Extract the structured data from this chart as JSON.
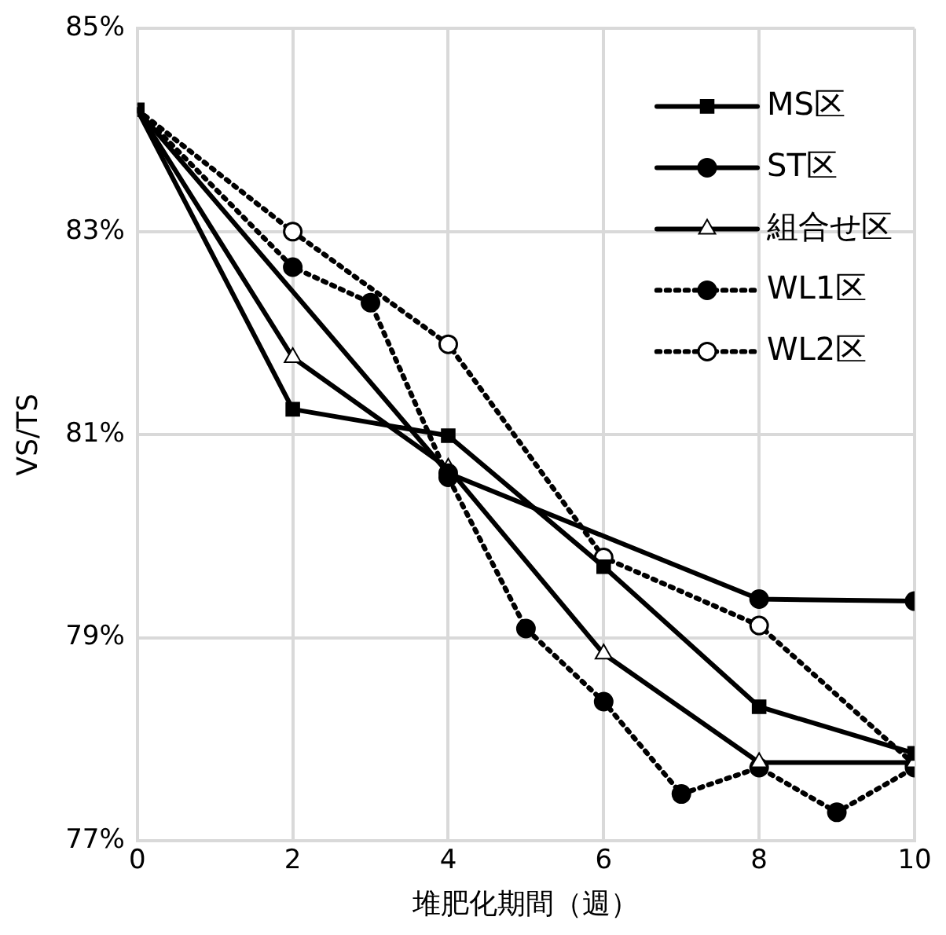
{
  "chart_data": {
    "type": "line",
    "xlabel": "堆肥化期間（週）",
    "ylabel": "VS/TS",
    "xlim": [
      0,
      10
    ],
    "xticks": [
      0,
      2,
      4,
      6,
      8,
      10
    ],
    "ylim": [
      77,
      85
    ],
    "yticks": [
      {
        "value": 77,
        "label": "77%"
      },
      {
        "value": 79,
        "label": "79%"
      },
      {
        "value": 81,
        "label": "81%"
      },
      {
        "value": 83,
        "label": "83%"
      },
      {
        "value": 85,
        "label": "85%"
      }
    ],
    "grid": true,
    "legend": "top right",
    "series": [
      {
        "name": "MS区",
        "color": "#000000",
        "marker": "square",
        "line_style": "solid",
        "x": [
          0,
          2,
          4,
          6,
          8,
          10
        ],
        "values": [
          84.2,
          81.25,
          80.99,
          79.7,
          78.32,
          77.86
        ]
      },
      {
        "name": "ST区",
        "color": "#000000",
        "marker": "circle",
        "line_style": "solid",
        "x": [
          0,
          4,
          8,
          10
        ],
        "values": [
          84.2,
          80.62,
          79.38,
          79.36
        ]
      },
      {
        "name": "組合せ区",
        "color": "#000000",
        "marker": "triangle",
        "line_style": "solid",
        "x": [
          0,
          2,
          4,
          6,
          8,
          10
        ],
        "values": [
          84.2,
          81.76,
          80.67,
          78.84,
          77.77,
          77.77
        ]
      },
      {
        "name": "WL1区",
        "color": "#000000",
        "marker": "circle",
        "line_style": "dotted",
        "x": [
          0,
          2,
          3,
          4,
          5,
          6,
          7,
          8,
          9,
          10
        ],
        "values": [
          84.2,
          82.65,
          82.3,
          80.58,
          79.09,
          78.37,
          77.46,
          77.72,
          77.28,
          77.72
        ]
      },
      {
        "name": "WL2区",
        "color": "#000000",
        "marker": "circle",
        "line_style": "dotted",
        "x": [
          0,
          2,
          4,
          6,
          8,
          10
        ],
        "values": [
          84.2,
          83.0,
          81.89,
          79.79,
          79.12,
          77.75
        ]
      }
    ]
  }
}
